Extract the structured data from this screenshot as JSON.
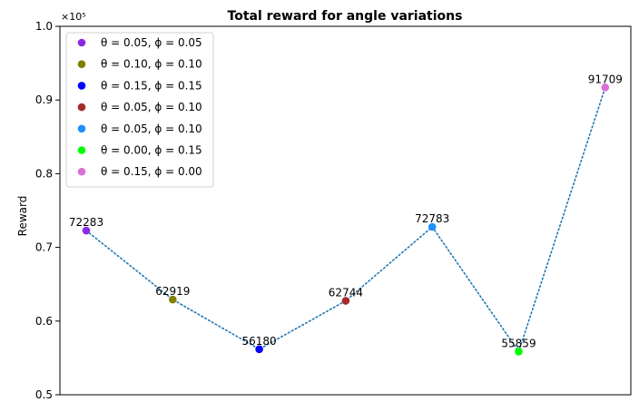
{
  "chart_data": {
    "type": "scatter",
    "title": "Total reward for angle variations",
    "xlabel": "",
    "ylabel": "Reward",
    "y_scale_note": "×10⁵",
    "ylim": [
      0.5,
      1.0
    ],
    "yticks": [
      0.5,
      0.6,
      0.7,
      0.8,
      0.9,
      1.0
    ],
    "ytick_labels": [
      "0.5",
      "0.6",
      "0.7",
      "0.8",
      "0.9",
      "1.0"
    ],
    "grid": false,
    "legend_position": "upper-left",
    "connector": {
      "style": "dotted",
      "color": "#1f77b4"
    },
    "points": [
      {
        "label": "θ = 0.05,  ϕ = 0.05",
        "value": 72283,
        "value_label": "72283",
        "color": "#8a2be2"
      },
      {
        "label": "θ = 0.10,  ϕ = 0.10",
        "value": 62919,
        "value_label": "62919",
        "color": "#808000"
      },
      {
        "label": "θ = 0.15,  ϕ = 0.15",
        "value": 56180,
        "value_label": "56180",
        "color": "#0000ff"
      },
      {
        "label": "θ = 0.05,  ϕ = 0.10",
        "value": 62744,
        "value_label": "62744",
        "color": "#a52a2a"
      },
      {
        "label": "θ = 0.05,  ϕ = 0.10",
        "value": 72783,
        "value_label": "72783",
        "color": "#1e90ff"
      },
      {
        "label": "θ = 0.00,  ϕ = 0.15",
        "value": 55859,
        "value_label": "55859",
        "color": "#00ff00"
      },
      {
        "label": "θ = 0.15,  ϕ = 0.00",
        "value": 91709,
        "value_label": "91709",
        "color": "#da70d6"
      }
    ]
  }
}
